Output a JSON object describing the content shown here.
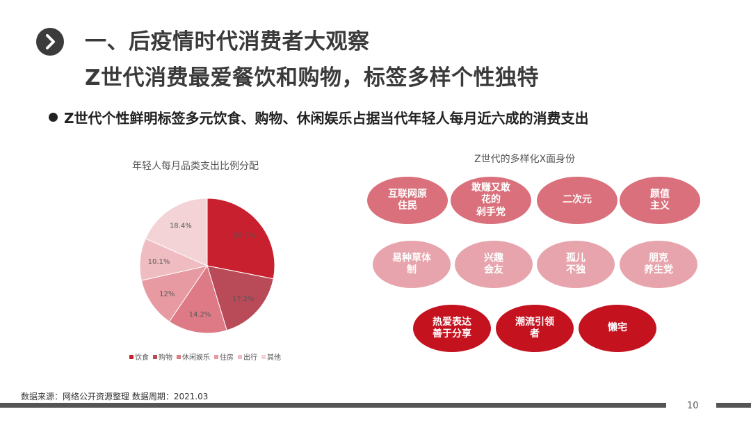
{
  "header": {
    "icon": "chevron-right-icon",
    "title_line1": "一、后疫情时代消费者大观察",
    "title_line2": "Z世代消费最爱餐饮和购物，标签多样个性独特"
  },
  "bullet": {
    "text": "Z世代个性鲜明标签多元饮食、购物、休闲娱乐占据当代年轻人每月近六成的消费支出"
  },
  "chart_data": {
    "type": "pie",
    "title": "年轻人每月品类支出比例分配",
    "categories": [
      "饮食",
      "购物",
      "休闲娱乐",
      "住房",
      "出行",
      "其他"
    ],
    "values": [
      28.1,
      17.2,
      14.2,
      12,
      10.1,
      18.4
    ],
    "labels": [
      "28.1%",
      "17.2%",
      "14.2%",
      "12%",
      "10.1%",
      "18.4%"
    ],
    "colors": [
      "#c8202e",
      "#b94a58",
      "#dd7a85",
      "#e79aa2",
      "#efbcc1",
      "#f3d3d6"
    ],
    "legend_position": "bottom"
  },
  "identities": {
    "title": "Z世代的多样化X面身份",
    "tags": [
      {
        "label": "互联网原\n住民",
        "color": "#d9707c"
      },
      {
        "label": "敢赚又敢\n花的\n剁手党",
        "color": "#d9707c"
      },
      {
        "label": "二次元",
        "color": "#d9707c"
      },
      {
        "label": "颜值\n主义",
        "color": "#d9707c"
      },
      {
        "label": "易种草体\n制",
        "color": "#e8a4ac"
      },
      {
        "label": "兴趣\n会友",
        "color": "#e8a4ac"
      },
      {
        "label": "孤儿\n不独",
        "color": "#e8a4ac"
      },
      {
        "label": "朋克\n养生党",
        "color": "#e8a4ac"
      },
      {
        "label": "热爱表达\n善于分享",
        "color": "#c4121f"
      },
      {
        "label": "潮流引领\n者",
        "color": "#c4121f"
      },
      {
        "label": "懒宅",
        "color": "#c4121f"
      }
    ]
  },
  "footer": {
    "source": "数据来源：网络公开资源整理 数据周期：2021.03",
    "page_number": "10"
  }
}
